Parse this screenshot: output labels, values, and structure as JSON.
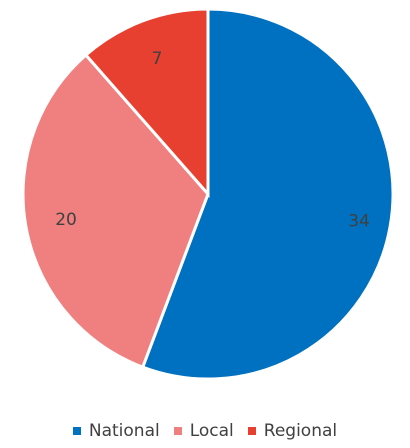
{
  "chart_data": {
    "type": "pie",
    "categories": [
      "National",
      "Local",
      "Regional"
    ],
    "values": [
      34,
      20,
      7
    ],
    "colors": [
      "#0070c0",
      "#f08080",
      "#e84030"
    ],
    "legend_position": "bottom",
    "data_labels": true
  }
}
